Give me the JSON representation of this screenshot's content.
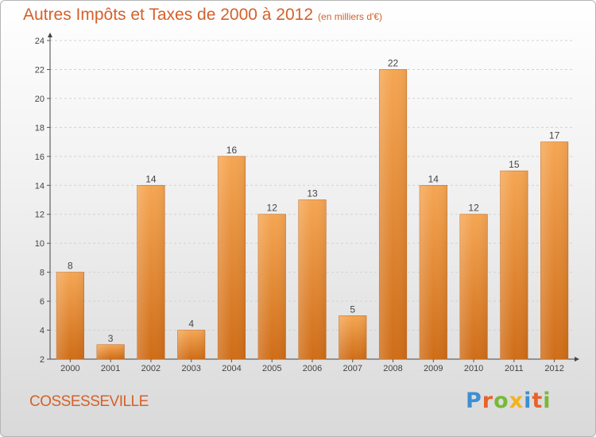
{
  "header": {
    "title": "Autres Impôts et Taxes de 2000 à 2012",
    "subtitle": "(en milliers d'€)"
  },
  "footer": {
    "location": "COSSESSEVILLE",
    "brand": "Proxiti"
  },
  "colors": {
    "title": "#d4612a",
    "bar_top": "#f5a653",
    "bar_bottom": "#cf6d18",
    "brand_letters": [
      "#3f8fd2",
      "#e8622c",
      "#79b83a",
      "#f2b21c",
      "#3f8fd2",
      "#e8622c",
      "#79b83a"
    ]
  },
  "chart_data": {
    "type": "bar",
    "categories": [
      "2000",
      "2001",
      "2002",
      "2003",
      "2004",
      "2005",
      "2006",
      "2007",
      "2008",
      "2009",
      "2010",
      "2011",
      "2012"
    ],
    "values": [
      8,
      3,
      14,
      4,
      16,
      12,
      13,
      5,
      22,
      14,
      12,
      15,
      17
    ],
    "ylim": [
      2,
      24
    ],
    "yticks": [
      2,
      4,
      6,
      8,
      10,
      12,
      14,
      16,
      18,
      20,
      22,
      24
    ],
    "grid": true,
    "legend": "none"
  }
}
